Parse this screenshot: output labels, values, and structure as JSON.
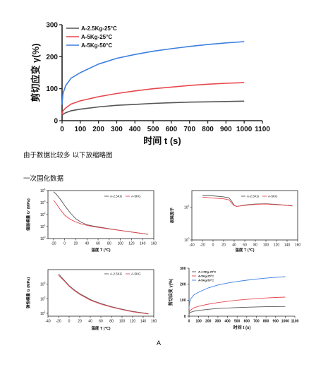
{
  "texts": {
    "note1": "由于数据比较多 以下放缩略图",
    "note2": "一次固化数据",
    "bottom_label": "A"
  },
  "colors": {
    "black": "#555555",
    "red": "#e8474e",
    "blue": "#3b7fe0"
  },
  "chart_data": [
    {
      "type": "line",
      "xlabel": "时间 t (s)",
      "ylabel": "剪切应变 γ(%)",
      "xlim": [
        0,
        1100
      ],
      "ylim": [
        0,
        300
      ],
      "xticks": [
        0,
        100,
        200,
        300,
        400,
        500,
        600,
        700,
        800,
        900,
        1000,
        1100
      ],
      "yticks": [
        0,
        100,
        200,
        300
      ],
      "legend_position": "top-left",
      "series": [
        {
          "name": "A-2.5Kg-25°C",
          "color": "#555555",
          "x": [
            0,
            5,
            20,
            50,
            100,
            200,
            300,
            400,
            500,
            600,
            700,
            800,
            900,
            1000
          ],
          "y": [
            15,
            20,
            25,
            31,
            36,
            43,
            48,
            51,
            54,
            56,
            58,
            59,
            60,
            61
          ]
        },
        {
          "name": "A-5Kg-25°C",
          "color": "#e8474e",
          "x": [
            0,
            5,
            20,
            50,
            100,
            200,
            300,
            400,
            500,
            600,
            700,
            800,
            900,
            1000
          ],
          "y": [
            20,
            31,
            40,
            52,
            62,
            75,
            85,
            93,
            100,
            105,
            110,
            114,
            117,
            119
          ]
        },
        {
          "name": "A-5Kg-50°C",
          "color": "#3b7fe0",
          "x": [
            0,
            5,
            20,
            50,
            100,
            200,
            300,
            400,
            500,
            600,
            700,
            800,
            900,
            1000
          ],
          "y": [
            50,
            85,
            110,
            133,
            150,
            177,
            195,
            207,
            217,
            225,
            232,
            238,
            243,
            247
          ]
        }
      ]
    },
    {
      "type": "line",
      "xlabel": "温度 T (℃)",
      "ylabel": "储能模量 G' (MPa)",
      "xlim": [
        -30,
        160
      ],
      "log_y": true,
      "ylim_exp": [
        0,
        4
      ],
      "xticks": [
        -20,
        0,
        20,
        40,
        60,
        80,
        100,
        120,
        140,
        160
      ],
      "legend_position": "top-right",
      "series": [
        {
          "name": "A-2.5KG",
          "color": "#555555",
          "x": [
            -20,
            -15,
            -10,
            -5,
            0,
            10,
            20,
            30,
            40,
            50,
            60,
            80,
            100,
            120,
            150
          ],
          "y": [
            3.9,
            3.7,
            3.4,
            3.1,
            2.75,
            2.15,
            1.65,
            1.35,
            1.15,
            1.05,
            0.97,
            0.82,
            0.68,
            0.55,
            0.35
          ]
        },
        {
          "name": "A-5KG",
          "color": "#e8474e",
          "x": [
            -20,
            -15,
            -10,
            -5,
            0,
            10,
            20,
            30,
            40,
            50,
            60,
            80,
            100,
            120,
            150
          ],
          "y": [
            3.2,
            2.9,
            2.55,
            2.25,
            1.95,
            1.6,
            1.38,
            1.22,
            1.1,
            1.0,
            0.93,
            0.8,
            0.67,
            0.54,
            0.36
          ]
        }
      ]
    },
    {
      "type": "line",
      "xlabel": "温度 T (℃)",
      "ylabel": "损耗因子",
      "xlim": [
        -40,
        160
      ],
      "log_y": true,
      "ylim_exp": [
        0,
        1.5
      ],
      "yticks_exp": [
        0,
        1
      ],
      "xticks": [
        -40,
        -20,
        0,
        20,
        40,
        60,
        80,
        100,
        120,
        140,
        160
      ],
      "legend_position": "top-right",
      "series": [
        {
          "name": "A-2.5KG",
          "color": "#555555",
          "x": [
            -20,
            0,
            20,
            30,
            35,
            40,
            45,
            50,
            60,
            80,
            100,
            120,
            140,
            150
          ],
          "y": [
            1.36,
            1.34,
            1.31,
            1.28,
            1.18,
            1.05,
            1.02,
            1.03,
            1.06,
            1.09,
            1.1,
            1.08,
            1.05,
            1.04
          ]
        },
        {
          "name": "A-5KG",
          "color": "#e8474e",
          "x": [
            -20,
            0,
            20,
            30,
            35,
            40,
            45,
            50,
            60,
            80,
            100,
            120,
            140,
            150
          ],
          "y": [
            1.3,
            1.27,
            1.25,
            1.22,
            1.12,
            1.04,
            1.02,
            1.03,
            1.05,
            1.08,
            1.09,
            1.07,
            1.05,
            1.03
          ]
        }
      ]
    },
    {
      "type": "line",
      "xlabel": "温度 T (℃)",
      "ylabel": "弹性模量 G (MPa)",
      "xlim": [
        -40,
        160
      ],
      "log_y": true,
      "ylim_exp": [
        0.8,
        4
      ],
      "yticks_exp": [
        1,
        2,
        3
      ],
      "xticks": [
        -40,
        -20,
        0,
        20,
        40,
        60,
        80,
        100,
        120,
        140,
        160
      ],
      "legend_position": "top-right",
      "series": [
        {
          "name": "A-2.5KG",
          "color": "#555555",
          "x": [
            -20,
            -10,
            0,
            10,
            20,
            30,
            40,
            50,
            60,
            80,
            100,
            120,
            150
          ],
          "y": [
            3.7,
            3.3,
            2.9,
            2.6,
            2.35,
            2.15,
            1.95,
            1.8,
            1.67,
            1.45,
            1.28,
            1.13,
            0.97
          ]
        },
        {
          "name": "A-5KG",
          "color": "#e8474e",
          "x": [
            -20,
            -10,
            0,
            10,
            20,
            30,
            40,
            50,
            60,
            80,
            100,
            120,
            150
          ],
          "y": [
            3.6,
            3.25,
            2.85,
            2.55,
            2.3,
            2.1,
            1.9,
            1.76,
            1.63,
            1.42,
            1.25,
            1.1,
            0.95
          ]
        }
      ]
    },
    {
      "type": "line",
      "xlabel": "时间 t (s)",
      "ylabel": "剪切应变 γ(%)",
      "xlim": [
        0,
        1100
      ],
      "ylim": [
        0,
        300
      ],
      "xticks": [
        0,
        100,
        200,
        300,
        400,
        500,
        600,
        700,
        800,
        900,
        1000,
        1100
      ],
      "yticks": [
        0,
        100,
        200,
        300
      ],
      "legend_position": "top-left",
      "series": [
        {
          "name": "A-2.5Kg-25°C",
          "color": "#555555",
          "x": [
            0,
            5,
            20,
            50,
            100,
            200,
            300,
            400,
            500,
            600,
            700,
            800,
            900,
            1000
          ],
          "y": [
            15,
            20,
            25,
            31,
            36,
            43,
            48,
            51,
            54,
            56,
            58,
            59,
            60,
            61
          ]
        },
        {
          "name": "A-5Kg-25°C",
          "color": "#e8474e",
          "x": [
            0,
            5,
            20,
            50,
            100,
            200,
            300,
            400,
            500,
            600,
            700,
            800,
            900,
            1000
          ],
          "y": [
            20,
            31,
            40,
            52,
            62,
            75,
            85,
            93,
            100,
            105,
            110,
            114,
            117,
            119
          ]
        },
        {
          "name": "A-5Kg-50°C",
          "color": "#3b7fe0",
          "x": [
            0,
            5,
            20,
            50,
            100,
            200,
            300,
            400,
            500,
            600,
            700,
            800,
            900,
            1000
          ],
          "y": [
            50,
            85,
            110,
            133,
            150,
            177,
            195,
            207,
            217,
            225,
            232,
            238,
            243,
            247
          ]
        }
      ]
    }
  ]
}
